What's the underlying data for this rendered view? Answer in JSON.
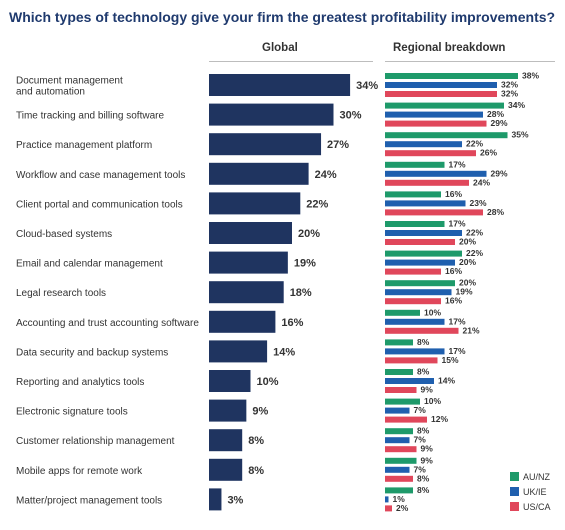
{
  "title": "Which types of technology give your firm the greatest profitability improvements?",
  "panels": {
    "global": "Global",
    "regional": "Regional breakdown"
  },
  "colors": {
    "global": "#1f3460",
    "AU/NZ": "#1e9a6a",
    "UK/IE": "#1f5fae",
    "US/CA": "#e0475b"
  },
  "chart_data": {
    "type": "bar",
    "categories": [
      "Document management\nand automation",
      "Time tracking and billing software",
      "Practice management platform",
      "Workflow and case management tools",
      "Client portal and communication tools",
      "Cloud-based systems",
      "Email and calendar management",
      "Legal research tools",
      "Accounting and trust accounting software",
      "Data security and backup systems",
      "Reporting and analytics tools",
      "Electronic signature tools",
      "Customer relationship management",
      "Mobile apps for remote work",
      "Matter/project management tools"
    ],
    "global": [
      34,
      30,
      27,
      24,
      22,
      20,
      19,
      18,
      16,
      14,
      10,
      9,
      8,
      8,
      3
    ],
    "series": [
      {
        "name": "AU/NZ",
        "values": [
          38,
          34,
          35,
          17,
          16,
          17,
          22,
          20,
          10,
          8,
          8,
          10,
          8,
          9,
          8
        ]
      },
      {
        "name": "UK/IE",
        "values": [
          32,
          28,
          22,
          29,
          23,
          22,
          20,
          19,
          17,
          17,
          14,
          7,
          7,
          7,
          1
        ]
      },
      {
        "name": "US/CA",
        "values": [
          32,
          29,
          26,
          24,
          28,
          20,
          16,
          16,
          21,
          15,
          9,
          12,
          9,
          8,
          2
        ]
      }
    ],
    "value_suffix": "%",
    "legend_position": "bottom-right"
  }
}
